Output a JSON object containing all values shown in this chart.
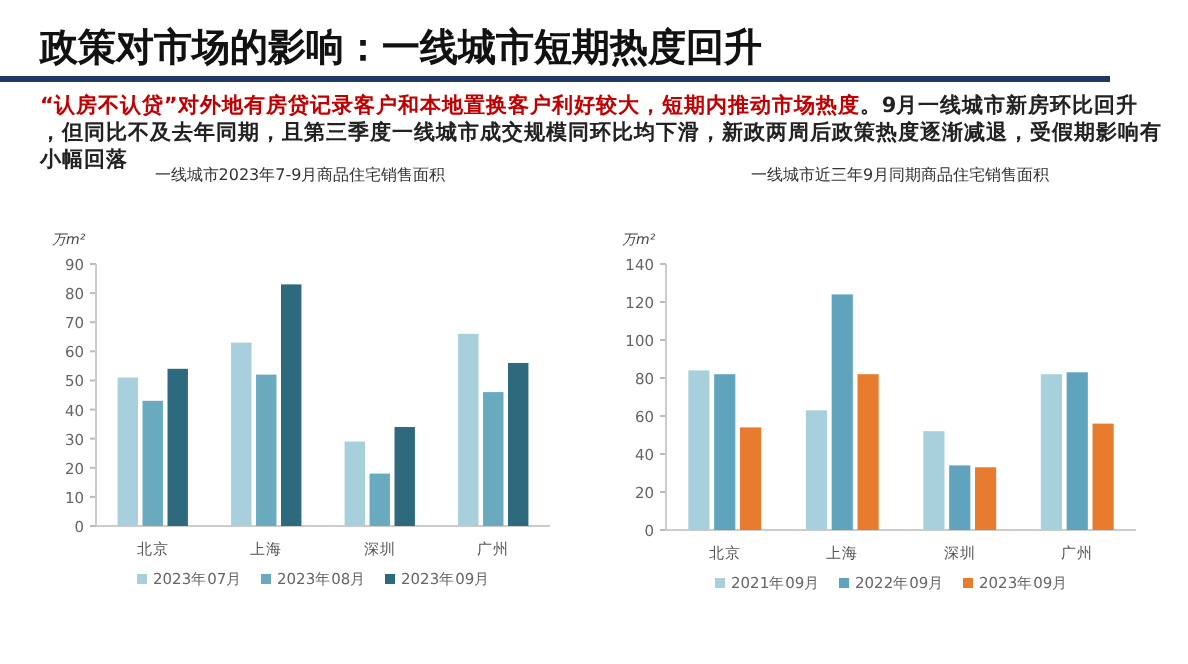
{
  "chart_data": [
    {
      "type": "other",
      "title": "政策对市场的影响：一线城市短期热度回升",
      "annotations": [
        "“认房不认贷”对外地有房贷记录客户和本地置换客户利好较大，短期内推动市场热度",
        "。9月一线城市新房环比回升，但同比不及去年同期，且第三季度一线城市成交规模同环比均下滑，新政两周后政策热度逐渐减退，受假期影响有小幅回落"
      ]
    },
    {
      "type": "bar",
      "title": "一线城市2023年7-9月商品住宅销售面积",
      "ylabel": "万m²",
      "categories": [
        "北京",
        "上海",
        "深圳",
        "广州"
      ],
      "ylim": [
        0,
        90
      ],
      "yticks": [
        0,
        10,
        20,
        30,
        40,
        50,
        60,
        70,
        80,
        90
      ],
      "grid": false,
      "legend": "bottom",
      "series": [
        {
          "name": "2023年07月",
          "color": "#a8cfdc",
          "values": [
            51,
            63,
            29,
            66
          ]
        },
        {
          "name": "2023年08月",
          "color": "#6aaabf",
          "values": [
            43,
            52,
            18,
            46
          ]
        },
        {
          "name": "2023年09月",
          "color": "#2e6a7e",
          "values": [
            54,
            83,
            34,
            56
          ]
        }
      ]
    },
    {
      "type": "bar",
      "title": "一线城市近三年9月同期商品住宅销售面积",
      "ylabel": "万m²",
      "categories": [
        "北京",
        "上海",
        "深圳",
        "广州"
      ],
      "ylim": [
        0,
        140
      ],
      "yticks": [
        0,
        20,
        40,
        60,
        80,
        100,
        120,
        140
      ],
      "grid": false,
      "legend": "bottom",
      "series": [
        {
          "name": "2021年09月",
          "color": "#a8cfdc",
          "values": [
            84,
            63,
            52,
            82
          ]
        },
        {
          "name": "2022年09月",
          "color": "#5fa3bd",
          "values": [
            82,
            124,
            34,
            83
          ]
        },
        {
          "name": "2023年09月",
          "color": "#e87c2e",
          "values": [
            54,
            82,
            33,
            56
          ]
        }
      ]
    }
  ]
}
